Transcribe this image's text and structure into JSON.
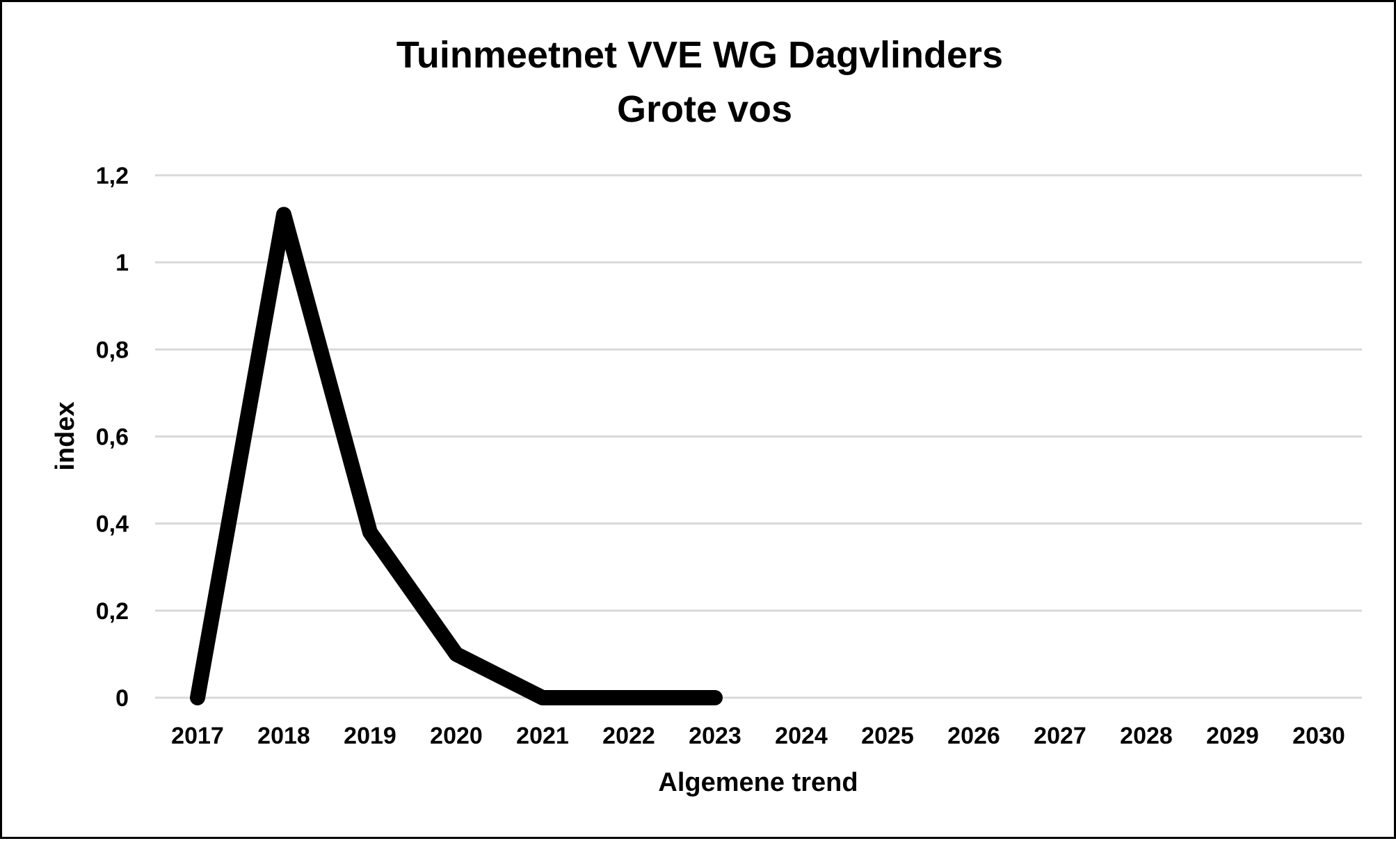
{
  "chart_data": {
    "type": "line",
    "title": "Tuinmeetnet VVE WG Dagvlinders",
    "subtitle": "Grote vos",
    "xlabel": "Algemene trend",
    "ylabel": "index",
    "categories": [
      "2017",
      "2018",
      "2019",
      "2020",
      "2021",
      "2022",
      "2023",
      "2024",
      "2025",
      "2026",
      "2027",
      "2028",
      "2029",
      "2030"
    ],
    "yticks": [
      {
        "value": 0,
        "label": "0"
      },
      {
        "value": 0.2,
        "label": "0,2"
      },
      {
        "value": 0.4,
        "label": "0,4"
      },
      {
        "value": 0.6,
        "label": "0,6"
      },
      {
        "value": 0.8,
        "label": "0,8"
      },
      {
        "value": 1,
        "label": "1"
      },
      {
        "value": 1.2,
        "label": "1,2"
      }
    ],
    "ylim": [
      0,
      1.2
    ],
    "grid": true,
    "legend": "none",
    "series": [
      {
        "color": "#000000",
        "values": [
          0,
          1.11,
          0.38,
          0.1,
          0,
          0,
          0,
          null,
          null,
          null,
          null,
          null,
          null,
          null
        ]
      }
    ]
  }
}
